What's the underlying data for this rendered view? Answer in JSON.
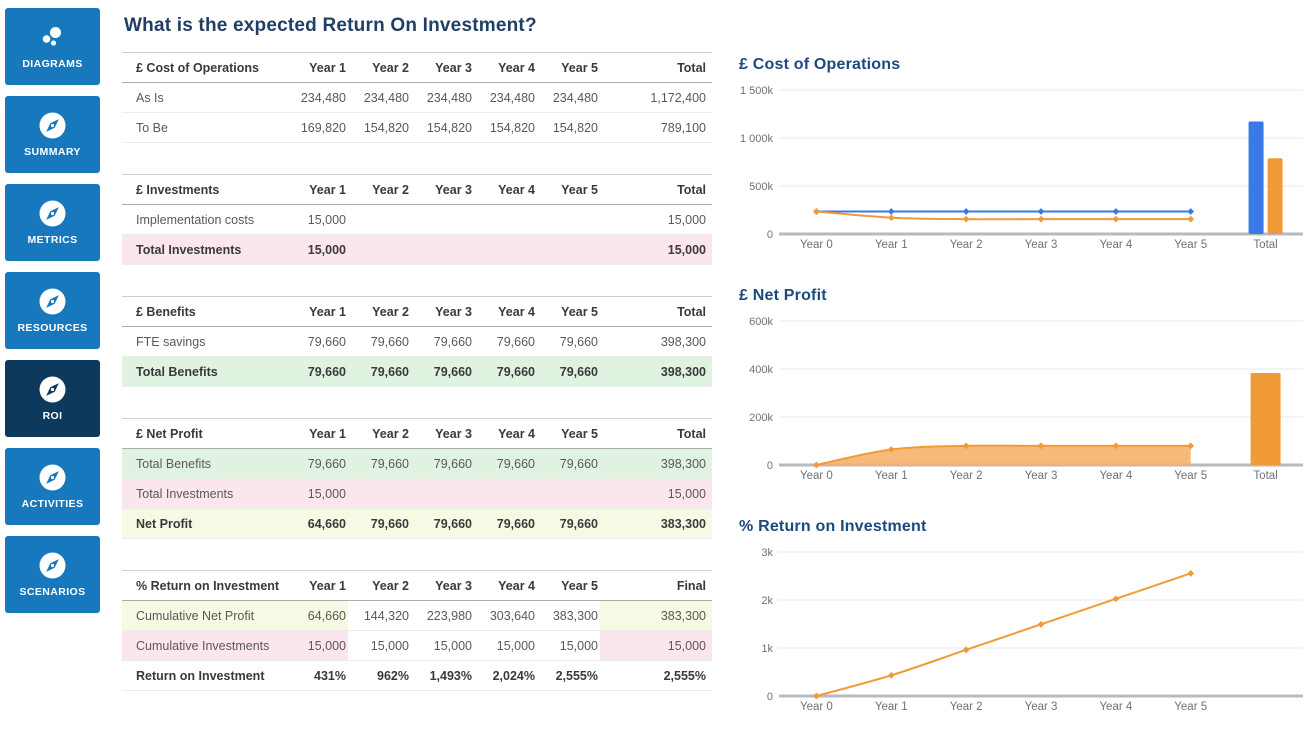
{
  "page_title": "What is the expected Return On Investment?",
  "colors": {
    "sidebar_blue": "#1878BE",
    "sidebar_active": "#0D3A5C",
    "title_blue": "#203F63",
    "chart_title_blue": "#1B4A7E",
    "chart_blue": "#3B79E8",
    "chart_orange": "#F09A38",
    "chart_orange_fill": "#F6B36B",
    "tint_green": "#E0F2E0",
    "tint_pink": "#FCE6EE",
    "tint_lime": "#F6F9E4"
  },
  "sidebar": {
    "items": [
      {
        "label": "DIAGRAMS",
        "icon": "bubbles-icon",
        "active": false
      },
      {
        "label": "SUMMARY",
        "icon": "compass-icon",
        "active": false
      },
      {
        "label": "METRICS",
        "icon": "compass-icon",
        "active": false
      },
      {
        "label": "RESOURCES",
        "icon": "compass-icon",
        "active": false
      },
      {
        "label": "ROI",
        "icon": "compass-icon",
        "active": true
      },
      {
        "label": "ACTIVITIES",
        "icon": "compass-icon",
        "active": false
      },
      {
        "label": "SCENARIOS",
        "icon": "compass-icon",
        "active": false
      }
    ]
  },
  "tables": [
    {
      "name": "cost-of-operations",
      "headers": [
        "£ Cost of Operations",
        "Year 1",
        "Year 2",
        "Year 3",
        "Year 4",
        "Year 5",
        "Total"
      ],
      "rows": [
        {
          "cells": [
            "As Is",
            "234,480",
            "234,480",
            "234,480",
            "234,480",
            "234,480",
            "1,172,400"
          ]
        },
        {
          "cells": [
            "To Be",
            "169,820",
            "154,820",
            "154,820",
            "154,820",
            "154,820",
            "789,100"
          ]
        }
      ]
    },
    {
      "name": "investments",
      "headers": [
        "£ Investments",
        "Year 1",
        "Year 2",
        "Year 3",
        "Year 4",
        "Year 5",
        "Total"
      ],
      "rows": [
        {
          "cells": [
            "Implementation costs",
            "15,000",
            "",
            "",
            "",
            "",
            "15,000"
          ]
        },
        {
          "cells": [
            "Total Investments",
            "15,000",
            "",
            "",
            "",
            "",
            "15,000"
          ],
          "bold": true,
          "tint": "pink",
          "tint_mode": "full"
        }
      ]
    },
    {
      "name": "benefits",
      "headers": [
        "£ Benefits",
        "Year 1",
        "Year 2",
        "Year 3",
        "Year 4",
        "Year 5",
        "Total"
      ],
      "rows": [
        {
          "cells": [
            "FTE savings",
            "79,660",
            "79,660",
            "79,660",
            "79,660",
            "79,660",
            "398,300"
          ]
        },
        {
          "cells": [
            "Total Benefits",
            "79,660",
            "79,660",
            "79,660",
            "79,660",
            "79,660",
            "398,300"
          ],
          "bold": true,
          "tint": "green",
          "tint_mode": "full"
        }
      ]
    },
    {
      "name": "net-profit",
      "headers": [
        "£ Net Profit",
        "Year 1",
        "Year 2",
        "Year 3",
        "Year 4",
        "Year 5",
        "Total"
      ],
      "rows": [
        {
          "cells": [
            "Total Benefits",
            "79,660",
            "79,660",
            "79,660",
            "79,660",
            "79,660",
            "398,300"
          ],
          "tint": "green",
          "tint_mode": "full"
        },
        {
          "cells": [
            "Total Investments",
            "15,000",
            "",
            "",
            "",
            "",
            "15,000"
          ],
          "tint": "pink",
          "tint_mode": "full"
        },
        {
          "cells": [
            "Net Profit",
            "64,660",
            "79,660",
            "79,660",
            "79,660",
            "79,660",
            "383,300"
          ],
          "bold": true,
          "tint": "lime",
          "tint_mode": "full"
        }
      ]
    },
    {
      "name": "return-on-investment",
      "headers": [
        "% Return on Investment",
        "Year 1",
        "Year 2",
        "Year 3",
        "Year 4",
        "Year 5",
        "Final"
      ],
      "rows": [
        {
          "cells": [
            "Cumulative Net Profit",
            "64,660",
            "144,320",
            "223,980",
            "303,640",
            "383,300",
            "383,300"
          ],
          "tint": "lime",
          "tint_mode": "ends"
        },
        {
          "cells": [
            "Cumulative Investments",
            "15,000",
            "15,000",
            "15,000",
            "15,000",
            "15,000",
            "15,000"
          ],
          "tint": "pink",
          "tint_mode": "ends"
        },
        {
          "cells": [
            "Return on Investment",
            "431%",
            "962%",
            "1,493%",
            "2,024%",
            "2,555%",
            "2,555%"
          ],
          "bold": true
        }
      ]
    }
  ],
  "chart_data": [
    {
      "name": "cost-of-operations",
      "title": "£ Cost of Operations",
      "type": "line+bar",
      "x_labels": [
        "Year 0",
        "Year 1",
        "Year 2",
        "Year 3",
        "Year 4",
        "Year 5",
        "Total"
      ],
      "x_slots": 7,
      "bar_slot": 6,
      "ymax": 1500000,
      "grid": true,
      "yticks": [
        {
          "label": "1 500k",
          "value": 1500000
        },
        {
          "label": "1 000k",
          "value": 1000000
        },
        {
          "label": "500k",
          "value": 500000
        },
        {
          "label": "0",
          "value": 0
        }
      ],
      "series": [
        {
          "name": "As Is",
          "color": "#3B79E8",
          "values": [
            234480,
            234480,
            234480,
            234480,
            234480,
            234480
          ],
          "total_bar": 1172400
        },
        {
          "name": "To Be",
          "color": "#F09A38",
          "values": [
            234480,
            169820,
            154820,
            154820,
            154820,
            154820
          ],
          "total_bar": 789100
        }
      ]
    },
    {
      "name": "net-profit",
      "title": "£ Net Profit",
      "type": "area+bar",
      "x_labels": [
        "Year 0",
        "Year 1",
        "Year 2",
        "Year 3",
        "Year 4",
        "Year 5",
        "Total"
      ],
      "x_slots": 7,
      "bar_slot": 6,
      "ymax": 600000,
      "grid": true,
      "yticks": [
        {
          "label": "600k",
          "value": 600000
        },
        {
          "label": "400k",
          "value": 400000
        },
        {
          "label": "200k",
          "value": 200000
        },
        {
          "label": "0",
          "value": 0
        }
      ],
      "series": [
        {
          "name": "Net Profit",
          "color": "#F09A38",
          "fill": "#F6B36B",
          "values": [
            0,
            64660,
            79660,
            79660,
            79660,
            79660
          ],
          "total_bar": 383300
        }
      ]
    },
    {
      "name": "return-on-investment",
      "title": "% Return on Investment",
      "type": "line",
      "x_labels": [
        "Year 0",
        "Year 1",
        "Year 2",
        "Year 3",
        "Year 4",
        "Year 5"
      ],
      "x_slots": 7,
      "ymax": 3000,
      "grid": true,
      "yticks": [
        {
          "label": "3k",
          "value": 3000
        },
        {
          "label": "2k",
          "value": 2000
        },
        {
          "label": "1k",
          "value": 1000
        },
        {
          "label": "0",
          "value": 0
        }
      ],
      "series": [
        {
          "name": "Return on Investment",
          "color": "#F09A38",
          "values": [
            0,
            431,
            962,
            1493,
            2024,
            2555
          ]
        }
      ]
    }
  ]
}
